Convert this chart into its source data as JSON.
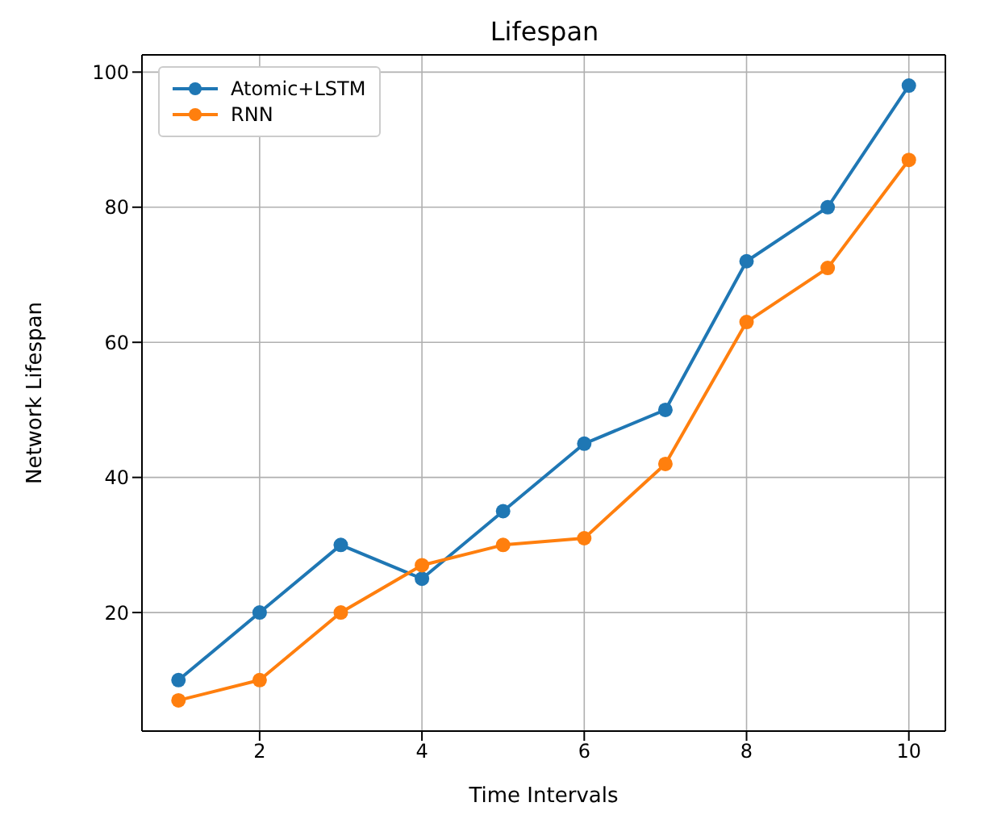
{
  "chart_data": {
    "type": "line",
    "title": "Lifespan",
    "xlabel": "Time Intervals",
    "ylabel": "Network Lifespan",
    "x": [
      1,
      2,
      3,
      4,
      5,
      6,
      7,
      8,
      9,
      10
    ],
    "series": [
      {
        "name": "Atomic+LSTM",
        "color": "#1f77b4",
        "values": [
          10,
          20,
          30,
          25,
          35,
          45,
          50,
          72,
          80,
          98
        ]
      },
      {
        "name": "RNN",
        "color": "#ff7f0e",
        "values": [
          7,
          10,
          20,
          27,
          30,
          31,
          42,
          63,
          71,
          87
        ]
      }
    ],
    "xlim": [
      0.55,
      10.45
    ],
    "xticks": [
      2,
      4,
      6,
      8,
      10
    ],
    "ylim": [
      2.45,
      102.55
    ],
    "yticks": [
      20,
      40,
      60,
      80,
      100
    ],
    "grid": true,
    "legend": "top left",
    "marker": "circle",
    "line_style": "solid"
  }
}
